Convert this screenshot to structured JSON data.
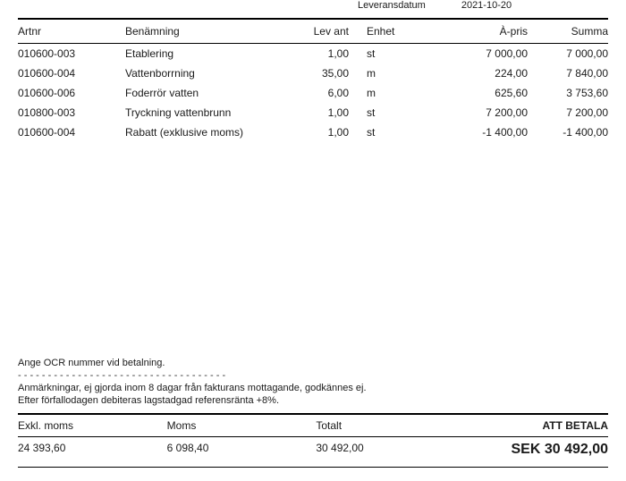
{
  "meta": {
    "label": "Leveransdatum",
    "date": "2021-10-20"
  },
  "columns": {
    "artnr": "Artnr",
    "name": "Benämning",
    "lev": "Lev ant",
    "enhet": "Enhet",
    "pris": "À-pris",
    "summa": "Summa"
  },
  "rows": [
    {
      "artnr": "010600-003",
      "name": "Etablering",
      "lev": "1,00",
      "enhet": "st",
      "pris": "7 000,00",
      "summa": "7 000,00"
    },
    {
      "artnr": "010600-004",
      "name": "Vattenborrning",
      "lev": "35,00",
      "enhet": "m",
      "pris": "224,00",
      "summa": "7 840,00"
    },
    {
      "artnr": "010600-006",
      "name": "Foderrör vatten",
      "lev": "6,00",
      "enhet": "m",
      "pris": "625,60",
      "summa": "3 753,60"
    },
    {
      "artnr": "010800-003",
      "name": "Tryckning vattenbrunn",
      "lev": "1,00",
      "enhet": "st",
      "pris": "7 200,00",
      "summa": "7 200,00"
    },
    {
      "artnr": "010600-004",
      "name": "Rabatt (exklusive moms)",
      "lev": "1,00",
      "enhet": "st",
      "pris": "-1 400,00",
      "summa": "-1 400,00"
    }
  ],
  "notes": {
    "ocr": "Ange OCR nummer vid betalning.",
    "dashes": "- - - - - - - - - - - - - - - - - - - - - - - - - - - - - - - - - - -",
    "l1": "Anmärkningar, ej gjorda inom 8 dagar från fakturans mottagande, godkännes ej.",
    "l2": "Efter förfallodagen debiteras lagstadgad referensränta +8%."
  },
  "totals": {
    "exkl_label": "Exkl. moms",
    "exkl": "24 393,60",
    "moms_label": "Moms",
    "moms": "6 098,40",
    "totalt_label": "Totalt",
    "totalt": "30 492,00",
    "pay_label": "ATT BETALA",
    "pay": "SEK 30 492,00"
  }
}
